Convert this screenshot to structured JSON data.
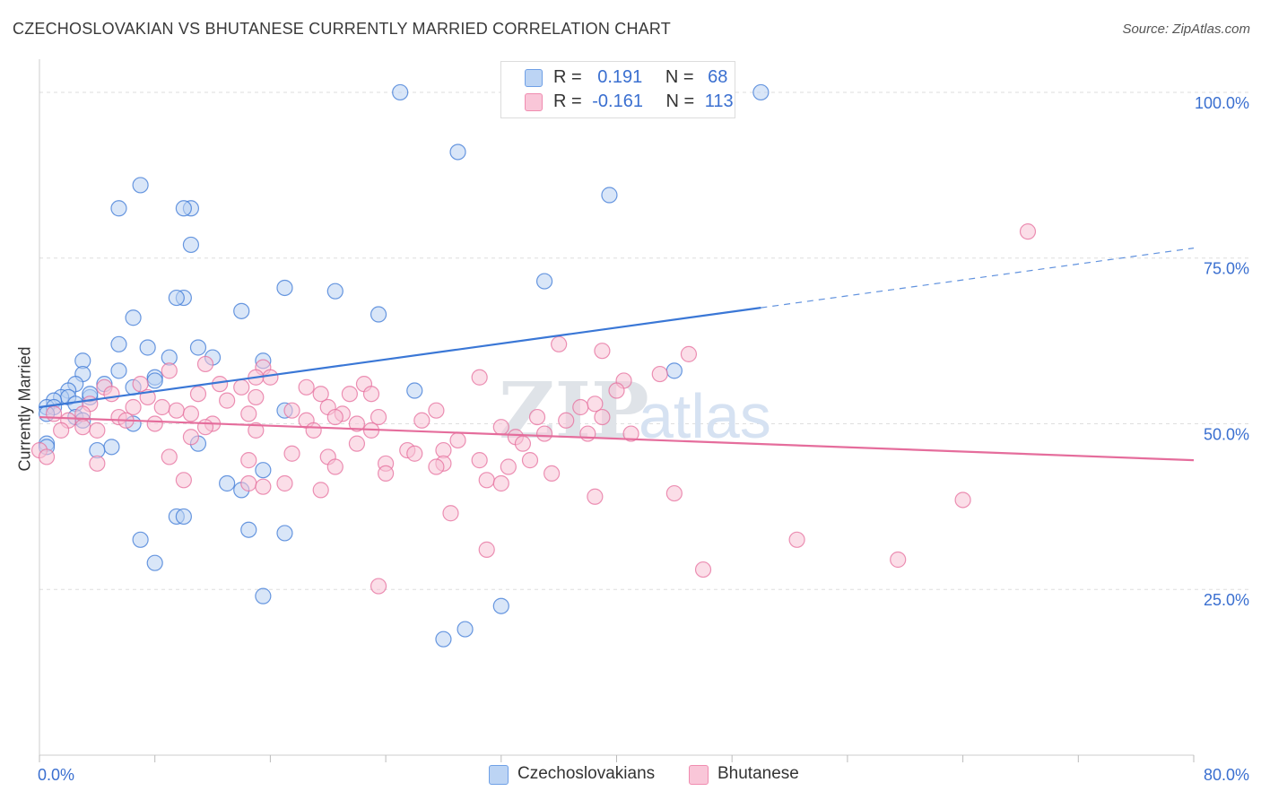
{
  "title": "CZECHOSLOVAKIAN VS BHUTANESE CURRENTLY MARRIED CORRELATION CHART",
  "source": "Source: ZipAtlas.com",
  "watermark": {
    "zip": "ZIP",
    "atlas": "atlas"
  },
  "legend": {
    "r_label": "R =",
    "n_label": "N =",
    "rows": [
      {
        "r": "0.191",
        "n": "68",
        "color": "#6fa0e6",
        "fill": "#bcd4f4"
      },
      {
        "r": "-0.161",
        "n": "113",
        "color": "#f08cb0",
        "fill": "#f9c6d8"
      }
    ]
  },
  "chart_data": {
    "type": "scatter",
    "title": "CZECHOSLOVAKIAN VS BHUTANESE CURRENTLY MARRIED CORRELATION CHART",
    "xlabel": "",
    "ylabel": "Currently Married",
    "xlim": [
      0,
      80
    ],
    "ylim": [
      0,
      105
    ],
    "x_tick_labels": [
      "0.0%",
      "80.0%"
    ],
    "y_ticks": [
      25,
      50,
      75,
      100
    ],
    "y_tick_labels": [
      "25.0%",
      "50.0%",
      "75.0%",
      "100.0%"
    ],
    "grid": "horizontal dashed",
    "legend_position": "top-center",
    "series": [
      {
        "name": "Czechoslovakians",
        "color": "#3a77d6",
        "fill": "#b9d1f2",
        "trend": {
          "x0": 0,
          "y0": 52.5,
          "x1": 50,
          "y1": 67.5,
          "dashed_to_x": 80,
          "dashed_to_y": 76.5
        },
        "points": [
          [
            25,
            100
          ],
          [
            50,
            100
          ],
          [
            29,
            91
          ],
          [
            7,
            86
          ],
          [
            5.5,
            82.5
          ],
          [
            10.5,
            82.5
          ],
          [
            10,
            82.5
          ],
          [
            39.5,
            84.5
          ],
          [
            10.5,
            77
          ],
          [
            35,
            71.5
          ],
          [
            17,
            70.5
          ],
          [
            20.5,
            70
          ],
          [
            10,
            69
          ],
          [
            9.5,
            69
          ],
          [
            14,
            67
          ],
          [
            23.5,
            66.5
          ],
          [
            6.5,
            66
          ],
          [
            5.5,
            62
          ],
          [
            7.5,
            61.5
          ],
          [
            11,
            61.5
          ],
          [
            12,
            60
          ],
          [
            9,
            60
          ],
          [
            3,
            59.5
          ],
          [
            15.5,
            59.5
          ],
          [
            3,
            57.5
          ],
          [
            5.5,
            58
          ],
          [
            44,
            58
          ],
          [
            8,
            57
          ],
          [
            2.5,
            56
          ],
          [
            8,
            56.5
          ],
          [
            4.5,
            56
          ],
          [
            6.5,
            55.5
          ],
          [
            2,
            55
          ],
          [
            26,
            55
          ],
          [
            1.5,
            54
          ],
          [
            3.5,
            54
          ],
          [
            3.5,
            54.5
          ],
          [
            2,
            54
          ],
          [
            1,
            53.5
          ],
          [
            2.5,
            53
          ],
          [
            0.5,
            52.5
          ],
          [
            1,
            52.5
          ],
          [
            17,
            52
          ],
          [
            0.5,
            51.5
          ],
          [
            2.5,
            51
          ],
          [
            3,
            50.5
          ],
          [
            6.5,
            50
          ],
          [
            11,
            47
          ],
          [
            0.5,
            47
          ],
          [
            0.5,
            46.5
          ],
          [
            5,
            46.5
          ],
          [
            4,
            46
          ],
          [
            15.5,
            43
          ],
          [
            13,
            41
          ],
          [
            14,
            40
          ],
          [
            9.5,
            36
          ],
          [
            10,
            36
          ],
          [
            14.5,
            34
          ],
          [
            17,
            33.5
          ],
          [
            7,
            32.5
          ],
          [
            8,
            29
          ],
          [
            15.5,
            24
          ],
          [
            28,
            17.5
          ],
          [
            32,
            22.5
          ],
          [
            29.5,
            19
          ]
        ]
      },
      {
        "name": "Bhutanese",
        "color": "#e56d9c",
        "fill": "#f8c3d6",
        "trend": {
          "x0": 0,
          "y0": 51,
          "x1": 80,
          "y1": 44.5
        },
        "points": [
          [
            68.5,
            79
          ],
          [
            36,
            62
          ],
          [
            39,
            61
          ],
          [
            45,
            60.5
          ],
          [
            11.5,
            59
          ],
          [
            15.5,
            58.5
          ],
          [
            9,
            58
          ],
          [
            16,
            57
          ],
          [
            15,
            57
          ],
          [
            30.5,
            57
          ],
          [
            43,
            57.5
          ],
          [
            40.5,
            56.5
          ],
          [
            7,
            56
          ],
          [
            12.5,
            56
          ],
          [
            14,
            55.5
          ],
          [
            18.5,
            55.5
          ],
          [
            22.5,
            56
          ],
          [
            4.5,
            55.5
          ],
          [
            11,
            54.5
          ],
          [
            19.5,
            54.5
          ],
          [
            21.5,
            54.5
          ],
          [
            23,
            54.5
          ],
          [
            40,
            55
          ],
          [
            5,
            54.5
          ],
          [
            7.5,
            54
          ],
          [
            13,
            53.5
          ],
          [
            15,
            54
          ],
          [
            3.5,
            53
          ],
          [
            6.5,
            52.5
          ],
          [
            8.5,
            52.5
          ],
          [
            9.5,
            52
          ],
          [
            17.5,
            52
          ],
          [
            20,
            52.5
          ],
          [
            27.5,
            52
          ],
          [
            38.5,
            53
          ],
          [
            37.5,
            52.5
          ],
          [
            3,
            51.5
          ],
          [
            5.5,
            51
          ],
          [
            10.5,
            51.5
          ],
          [
            14.5,
            51.5
          ],
          [
            21,
            51.5
          ],
          [
            23.5,
            51
          ],
          [
            1,
            51.5
          ],
          [
            12,
            50
          ],
          [
            2,
            50.5
          ],
          [
            6,
            50.5
          ],
          [
            8,
            50
          ],
          [
            18.5,
            50.5
          ],
          [
            20.5,
            51
          ],
          [
            34.5,
            51
          ],
          [
            36.5,
            50.5
          ],
          [
            39,
            51
          ],
          [
            26.5,
            50.5
          ],
          [
            22,
            50
          ],
          [
            3,
            49.5
          ],
          [
            1.5,
            49
          ],
          [
            4,
            49
          ],
          [
            11.5,
            49.5
          ],
          [
            15,
            49
          ],
          [
            19,
            49
          ],
          [
            23,
            49
          ],
          [
            32,
            49.5
          ],
          [
            35,
            48.5
          ],
          [
            38,
            48.5
          ],
          [
            41,
            48.5
          ],
          [
            33,
            48
          ],
          [
            29,
            47.5
          ],
          [
            10.5,
            48
          ],
          [
            22,
            47
          ],
          [
            25.5,
            46
          ],
          [
            28,
            46
          ],
          [
            33.5,
            47
          ],
          [
            26,
            45.5
          ],
          [
            17.5,
            45.5
          ],
          [
            20,
            45
          ],
          [
            9,
            45
          ],
          [
            30.5,
            44.5
          ],
          [
            34,
            44.5
          ],
          [
            0,
            46
          ],
          [
            0.5,
            45
          ],
          [
            4,
            44
          ],
          [
            14.5,
            44.5
          ],
          [
            28,
            44
          ],
          [
            24,
            44
          ],
          [
            27.5,
            43.5
          ],
          [
            32.5,
            43.5
          ],
          [
            20.5,
            43.5
          ],
          [
            24,
            42.5
          ],
          [
            35.5,
            42.5
          ],
          [
            31,
            41.5
          ],
          [
            32,
            41
          ],
          [
            10,
            41.5
          ],
          [
            14.5,
            41
          ],
          [
            17,
            41
          ],
          [
            15.5,
            40.5
          ],
          [
            19.5,
            40
          ],
          [
            38.5,
            39
          ],
          [
            44,
            39.5
          ],
          [
            64,
            38.5
          ],
          [
            28.5,
            36.5
          ],
          [
            31,
            31
          ],
          [
            52.5,
            32.5
          ],
          [
            59.5,
            29.5
          ],
          [
            46,
            28
          ],
          [
            23.5,
            25.5
          ]
        ]
      }
    ]
  }
}
